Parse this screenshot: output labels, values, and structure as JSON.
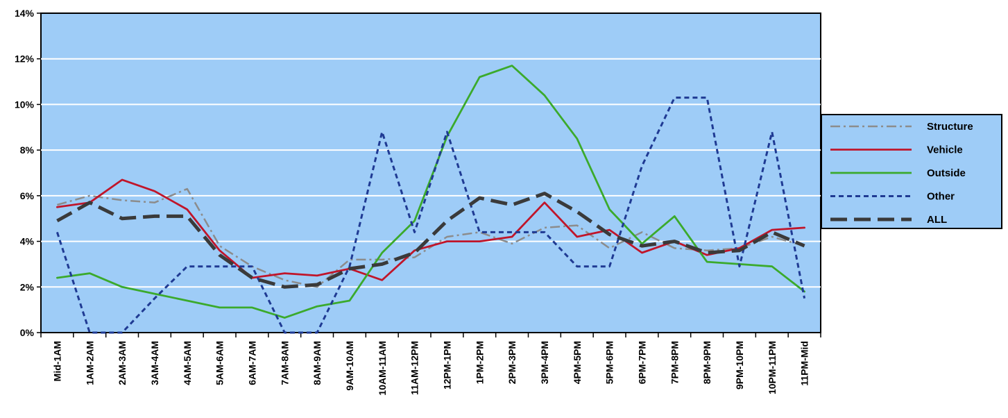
{
  "chart_data": {
    "type": "line",
    "title": "",
    "xlabel": "",
    "ylabel": "",
    "ylim": [
      0,
      14
    ],
    "yticks": [
      "0%",
      "2%",
      "4%",
      "6%",
      "8%",
      "10%",
      "12%",
      "14%"
    ],
    "grid": "horizontal",
    "legend_position": "right",
    "plot_background": "#9ECCF7",
    "categories": [
      "Mid-1AM",
      "1AM-2AM",
      "2AM-3AM",
      "3AM-4AM",
      "4AM-5AM",
      "5AM-6AM",
      "6AM-7AM",
      "7AM-8AM",
      "8AM-9AM",
      "9AM-10AM",
      "10AM-11AM",
      "11AM-12PM",
      "12PM-1PM",
      "1PM-2PM",
      "2PM-3PM",
      "3PM-4PM",
      "4PM-5PM",
      "5PM-6PM",
      "6PM-7PM",
      "7PM-8PM",
      "8PM-9PM",
      "9PM-10PM",
      "10PM-11PM",
      "11PM-Mid"
    ],
    "series": [
      {
        "name": "Structure",
        "color": "#8C8C8C",
        "style": "dash-dot",
        "values": [
          5.6,
          6.0,
          5.8,
          5.7,
          6.3,
          3.8,
          2.9,
          2.3,
          2.0,
          3.2,
          3.2,
          3.3,
          4.2,
          4.4,
          3.9,
          4.6,
          4.7,
          3.7,
          4.4,
          3.7,
          3.6,
          3.7,
          4.2,
          3.8
        ]
      },
      {
        "name": "Vehicle",
        "color": "#C0152A",
        "style": "solid",
        "values": [
          5.5,
          5.7,
          6.7,
          6.2,
          5.4,
          3.6,
          2.4,
          2.6,
          2.5,
          2.8,
          2.3,
          3.6,
          4.0,
          4.0,
          4.2,
          5.7,
          4.2,
          4.5,
          3.5,
          4.0,
          3.4,
          3.7,
          4.5,
          4.6
        ]
      },
      {
        "name": "Outside",
        "color": "#3BAA2C",
        "style": "solid",
        "values": [
          2.4,
          2.6,
          2.0,
          1.7,
          1.4,
          1.1,
          1.1,
          0.65,
          1.15,
          1.4,
          3.5,
          4.9,
          8.6,
          11.2,
          11.7,
          10.4,
          8.5,
          5.4,
          3.9,
          5.1,
          3.1,
          3.0,
          2.9,
          1.8
        ]
      },
      {
        "name": "Other",
        "color": "#1F3A93",
        "style": "dotted",
        "values": [
          4.4,
          0.0,
          0.0,
          1.5,
          2.9,
          2.9,
          2.9,
          0.0,
          0.0,
          2.9,
          8.8,
          4.4,
          8.8,
          4.4,
          4.4,
          4.4,
          2.9,
          2.9,
          7.3,
          10.3,
          10.3,
          2.9,
          8.8,
          1.5
        ]
      },
      {
        "name": "ALL",
        "color": "#3A3A3A",
        "style": "long-dash",
        "values": [
          4.9,
          5.7,
          5.0,
          5.1,
          5.1,
          3.4,
          2.4,
          2.0,
          2.1,
          2.8,
          3.0,
          3.5,
          4.9,
          5.9,
          5.6,
          6.1,
          5.3,
          4.3,
          3.8,
          4.0,
          3.5,
          3.6,
          4.4,
          3.8
        ]
      }
    ]
  }
}
